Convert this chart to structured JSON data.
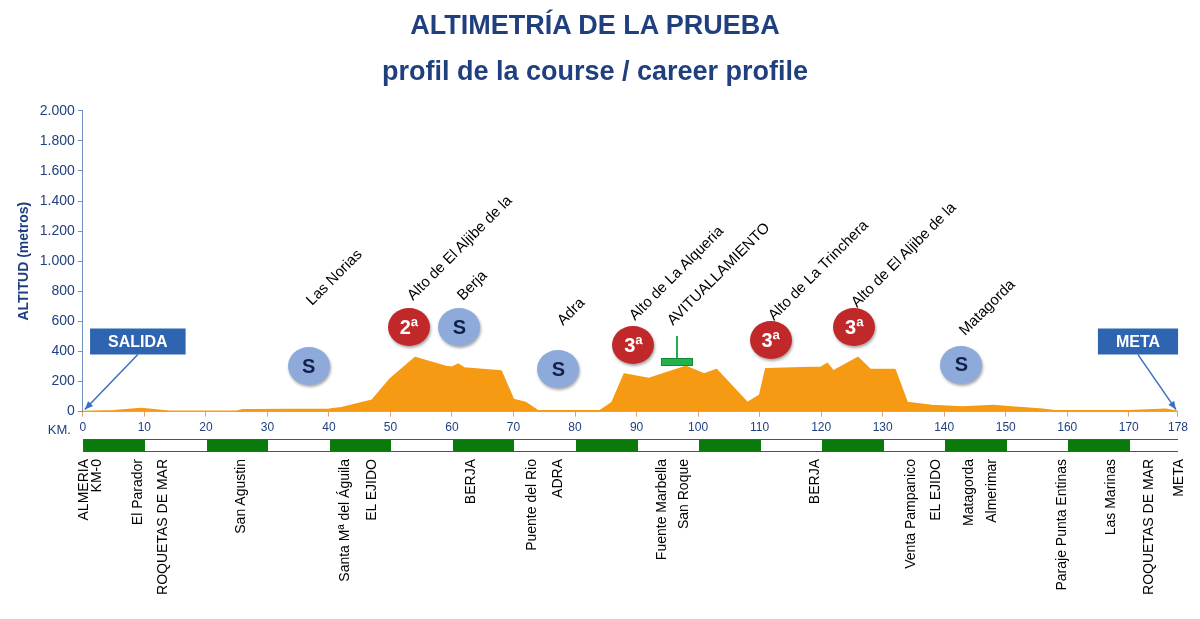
{
  "chart_data": {
    "type": "area",
    "title": "ALTIMETRÍA DE LA PRUEBA",
    "subtitle": "profil de la course / career profile",
    "xlabel": "KM.",
    "ylabel": "ALTITUD (metros)",
    "x": [
      0,
      5,
      9.5,
      14,
      25,
      26,
      40,
      42,
      47,
      50,
      54,
      59,
      60,
      61,
      62,
      68,
      70,
      72,
      74,
      84,
      86,
      88,
      92,
      98,
      101,
      103,
      108,
      110,
      111,
      120,
      121,
      122,
      126,
      128,
      132,
      134,
      138,
      143,
      148,
      156,
      158,
      170,
      176,
      178
    ],
    "series": [
      {
        "color": "#f59a12",
        "values": [
          0,
          5,
          20,
          2,
          2,
          12,
          15,
          25,
          75,
          220,
          360,
          300,
          295,
          315,
          290,
          270,
          80,
          60,
          5,
          5,
          60,
          250,
          220,
          300,
          250,
          280,
          60,
          110,
          285,
          295,
          320,
          270,
          360,
          280,
          280,
          60,
          40,
          30,
          40,
          15,
          5,
          5,
          15,
          0
        ]
      }
    ],
    "xlim": [
      0,
      178
    ],
    "xticks": [
      0,
      10,
      20,
      30,
      40,
      50,
      60,
      70,
      80,
      90,
      100,
      110,
      120,
      130,
      140,
      150,
      160,
      170,
      178
    ],
    "ylim": [
      0,
      2000
    ],
    "yticks": [
      {
        "value": 0,
        "label": "0"
      },
      {
        "value": 200,
        "label": "200"
      },
      {
        "value": 400,
        "label": "400"
      },
      {
        "value": 600,
        "label": "600"
      },
      {
        "value": 800,
        "label": "800"
      },
      {
        "value": 1000,
        "label": "1.000"
      },
      {
        "value": 1200,
        "label": "1.200"
      },
      {
        "value": 1400,
        "label": "1.400"
      },
      {
        "value": 1600,
        "label": "1.600"
      },
      {
        "value": 1800,
        "label": "1.800"
      },
      {
        "value": 2000,
        "label": "2.000"
      }
    ],
    "grid": false,
    "legend": false,
    "annotations": [
      {
        "text": "SALIDA",
        "x": 0,
        "y": 0
      },
      {
        "text": "META",
        "x": 178,
        "y": 0
      },
      "Las Norias",
      "Alto de El Aljibe de la",
      "Berja",
      "Adra",
      "Alto de La Alqueria",
      "AVITUALLAMIENTO",
      "Alto de La Trinchera",
      "Alto de El Aljibe de la",
      "Matagorda",
      "S",
      "2ª",
      "S",
      "S",
      "3ª",
      "3ª",
      "3ª",
      "S",
      "ALMERIA",
      "KM-0",
      "El Parador",
      "ROQUETAS DE MAR",
      "San Agustin",
      "Santa Mª del Águila",
      "EL EJIDO",
      "BERJA",
      "Puente del Rio",
      "ADRA",
      "Fuente Marbella",
      "San Roque",
      "BERJA",
      "Venta Pampanico",
      "EL EJIDO",
      "Matagorda",
      "Almerimar",
      "Paraje Punta Entinas",
      "Las Marinas",
      "ROQUETAS DE MAR",
      "META"
    ]
  }
}
